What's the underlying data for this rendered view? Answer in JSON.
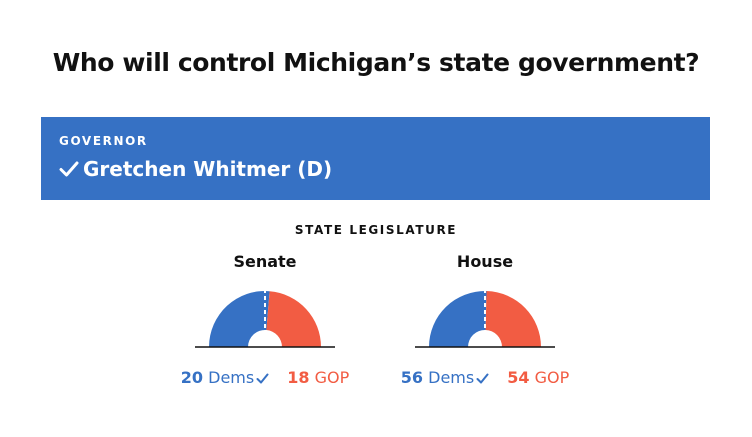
{
  "title": "Who will control Michigan’s state government?",
  "governor": {
    "label": "GOVERNOR",
    "winner": "Gretchen Whitmer (D)"
  },
  "legislature_label": "STATE LEGISLATURE",
  "colors": {
    "dem": "#3671c4",
    "gop": "#f25c43",
    "banner": "#3671c4"
  },
  "chart_data": [
    {
      "type": "pie",
      "title": "Senate",
      "categories": [
        "Dems",
        "GOP"
      ],
      "values": [
        20,
        18
      ],
      "winner": "Dems"
    },
    {
      "type": "pie",
      "title": "House",
      "categories": [
        "Dems",
        "GOP"
      ],
      "values": [
        56,
        54
      ],
      "winner": "Dems"
    }
  ],
  "labels": {
    "senate": {
      "dem_count": "20",
      "dem_text": "Dems",
      "gop_count": "18",
      "gop_text": "GOP"
    },
    "house": {
      "dem_count": "56",
      "dem_text": "Dems",
      "gop_count": "54",
      "gop_text": "GOP"
    }
  }
}
